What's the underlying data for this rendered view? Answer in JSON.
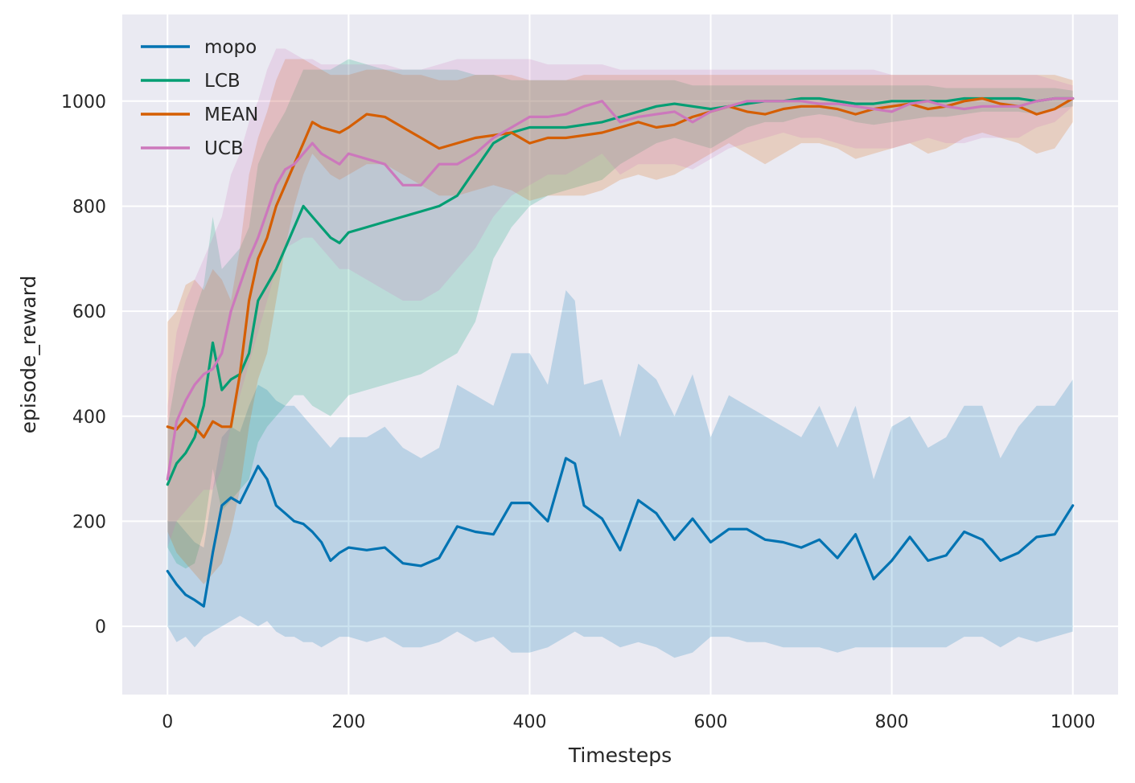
{
  "chart_data": {
    "type": "line",
    "xlabel": "Timesteps",
    "ylabel": "episode_reward",
    "xlim": [
      -50,
      1050
    ],
    "ylim": [
      -130,
      1165
    ],
    "xticks": [
      0,
      200,
      400,
      600,
      800,
      1000
    ],
    "yticks": [
      0,
      200,
      400,
      600,
      800,
      1000
    ],
    "grid": true,
    "legend": "top-left",
    "background": "#eaeaf2",
    "series": [
      {
        "name": "mopo",
        "color": "#0173b2",
        "x": [
          0,
          10,
          20,
          30,
          40,
          50,
          60,
          70,
          80,
          90,
          100,
          110,
          120,
          130,
          140,
          150,
          160,
          170,
          180,
          190,
          200,
          220,
          240,
          260,
          280,
          300,
          320,
          340,
          360,
          380,
          400,
          420,
          440,
          450,
          460,
          480,
          500,
          520,
          540,
          560,
          580,
          600,
          620,
          640,
          660,
          680,
          700,
          720,
          740,
          760,
          780,
          800,
          820,
          840,
          860,
          880,
          900,
          920,
          940,
          960,
          980,
          1000
        ],
        "mean": [
          105,
          80,
          60,
          50,
          38,
          140,
          230,
          245,
          235,
          270,
          305,
          280,
          230,
          215,
          200,
          195,
          180,
          160,
          125,
          140,
          150,
          145,
          150,
          120,
          115,
          130,
          190,
          180,
          175,
          235,
          235,
          200,
          320,
          310,
          230,
          205,
          145,
          240,
          215,
          165,
          205,
          160,
          185,
          185,
          165,
          160,
          150,
          165,
          130,
          175,
          90,
          125,
          170,
          125,
          135,
          180,
          165,
          125,
          140,
          170,
          175,
          230
        ],
        "lower": [
          0,
          -30,
          -20,
          -40,
          -20,
          -10,
          0,
          10,
          20,
          10,
          0,
          10,
          -10,
          -20,
          -20,
          -30,
          -30,
          -40,
          -30,
          -20,
          -20,
          -30,
          -20,
          -40,
          -40,
          -30,
          -10,
          -30,
          -20,
          -50,
          -50,
          -40,
          -20,
          -10,
          -20,
          -20,
          -40,
          -30,
          -40,
          -60,
          -50,
          -20,
          -20,
          -30,
          -30,
          -40,
          -40,
          -40,
          -50,
          -40,
          -40,
          -40,
          -40,
          -40,
          -40,
          -20,
          -20,
          -40,
          -20,
          -30,
          -20,
          -10
        ],
        "upper": [
          200,
          200,
          180,
          160,
          150,
          260,
          360,
          380,
          370,
          420,
          460,
          450,
          430,
          420,
          420,
          400,
          380,
          360,
          340,
          360,
          360,
          360,
          380,
          340,
          320,
          340,
          460,
          440,
          420,
          520,
          520,
          460,
          640,
          620,
          460,
          470,
          360,
          500,
          470,
          400,
          480,
          360,
          440,
          420,
          400,
          380,
          360,
          420,
          340,
          420,
          280,
          380,
          400,
          340,
          360,
          420,
          420,
          320,
          380,
          420,
          420,
          470
        ]
      },
      {
        "name": "LCB",
        "color": "#029e73",
        "x": [
          0,
          10,
          20,
          30,
          40,
          50,
          60,
          70,
          80,
          90,
          100,
          110,
          120,
          130,
          140,
          150,
          160,
          170,
          180,
          190,
          200,
          220,
          240,
          260,
          280,
          300,
          320,
          340,
          360,
          380,
          400,
          420,
          440,
          460,
          480,
          500,
          520,
          540,
          560,
          580,
          600,
          620,
          640,
          660,
          680,
          700,
          720,
          740,
          760,
          780,
          800,
          820,
          840,
          860,
          880,
          900,
          920,
          940,
          960,
          980,
          1000
        ],
        "mean": [
          270,
          310,
          330,
          360,
          420,
          540,
          450,
          470,
          480,
          520,
          620,
          650,
          680,
          720,
          760,
          800,
          780,
          760,
          740,
          730,
          750,
          760,
          770,
          780,
          790,
          800,
          820,
          870,
          920,
          940,
          950,
          950,
          950,
          955,
          960,
          970,
          980,
          990,
          995,
          990,
          985,
          990,
          995,
          1000,
          1000,
          1005,
          1005,
          1000,
          995,
          995,
          1000,
          1000,
          1000,
          1000,
          1005,
          1005,
          1005,
          1005,
          1000,
          1005,
          1005
        ],
        "lower": [
          150,
          120,
          110,
          120,
          180,
          300,
          220,
          240,
          260,
          280,
          350,
          380,
          400,
          420,
          440,
          440,
          420,
          410,
          400,
          420,
          440,
          450,
          460,
          470,
          480,
          500,
          520,
          580,
          700,
          760,
          800,
          820,
          830,
          840,
          850,
          880,
          900,
          920,
          930,
          920,
          910,
          930,
          950,
          960,
          960,
          970,
          975,
          970,
          960,
          955,
          960,
          965,
          970,
          970,
          975,
          980,
          980,
          980,
          975,
          985,
          990
        ],
        "upper": [
          380,
          480,
          540,
          600,
          650,
          780,
          680,
          700,
          720,
          760,
          880,
          920,
          950,
          980,
          1020,
          1060,
          1060,
          1060,
          1060,
          1070,
          1080,
          1070,
          1060,
          1060,
          1060,
          1060,
          1060,
          1050,
          1050,
          1040,
          1040,
          1040,
          1040,
          1040,
          1040,
          1040,
          1040,
          1040,
          1040,
          1030,
          1030,
          1030,
          1030,
          1030,
          1030,
          1030,
          1030,
          1030,
          1030,
          1030,
          1030,
          1030,
          1030,
          1025,
          1025,
          1025,
          1025,
          1025,
          1025,
          1025,
          1020
        ]
      },
      {
        "name": "MEAN",
        "color": "#d55e00",
        "x": [
          0,
          10,
          20,
          30,
          40,
          50,
          60,
          70,
          80,
          90,
          100,
          110,
          120,
          130,
          140,
          150,
          160,
          170,
          180,
          190,
          200,
          220,
          240,
          260,
          280,
          300,
          320,
          340,
          360,
          380,
          400,
          420,
          440,
          460,
          480,
          500,
          520,
          540,
          560,
          580,
          600,
          620,
          640,
          660,
          680,
          700,
          720,
          740,
          760,
          780,
          800,
          820,
          840,
          860,
          880,
          900,
          920,
          940,
          960,
          980,
          1000
        ],
        "mean": [
          380,
          375,
          395,
          380,
          360,
          390,
          380,
          380,
          480,
          620,
          700,
          740,
          800,
          840,
          880,
          920,
          960,
          950,
          945,
          940,
          950,
          975,
          970,
          950,
          930,
          910,
          920,
          930,
          935,
          940,
          920,
          930,
          930,
          935,
          940,
          950,
          960,
          950,
          955,
          970,
          980,
          990,
          980,
          975,
          985,
          990,
          990,
          985,
          975,
          985,
          990,
          995,
          985,
          990,
          1000,
          1005,
          995,
          990,
          975,
          985,
          1005
        ],
        "lower": [
          180,
          140,
          120,
          100,
          80,
          100,
          120,
          180,
          260,
          380,
          470,
          520,
          620,
          720,
          800,
          860,
          900,
          880,
          860,
          850,
          860,
          880,
          880,
          860,
          840,
          820,
          820,
          830,
          840,
          830,
          810,
          820,
          820,
          820,
          830,
          850,
          860,
          850,
          860,
          880,
          900,
          920,
          900,
          880,
          900,
          920,
          920,
          910,
          890,
          900,
          910,
          920,
          900,
          910,
          930,
          940,
          930,
          920,
          900,
          910,
          960
        ],
        "upper": [
          580,
          600,
          650,
          660,
          640,
          680,
          660,
          620,
          720,
          860,
          930,
          980,
          1040,
          1080,
          1080,
          1080,
          1070,
          1060,
          1050,
          1050,
          1050,
          1060,
          1060,
          1050,
          1050,
          1040,
          1040,
          1050,
          1050,
          1050,
          1040,
          1040,
          1040,
          1050,
          1050,
          1050,
          1050,
          1050,
          1050,
          1050,
          1050,
          1050,
          1050,
          1050,
          1050,
          1050,
          1050,
          1050,
          1050,
          1050,
          1050,
          1050,
          1050,
          1050,
          1050,
          1050,
          1050,
          1050,
          1050,
          1050,
          1040
        ]
      },
      {
        "name": "UCB",
        "color": "#cc78bc",
        "x": [
          0,
          10,
          20,
          30,
          40,
          50,
          60,
          70,
          80,
          90,
          100,
          110,
          120,
          130,
          140,
          150,
          160,
          170,
          180,
          190,
          200,
          220,
          240,
          260,
          280,
          300,
          320,
          340,
          360,
          380,
          400,
          420,
          440,
          460,
          480,
          500,
          520,
          540,
          560,
          580,
          600,
          620,
          640,
          660,
          680,
          700,
          720,
          740,
          760,
          780,
          800,
          820,
          840,
          860,
          880,
          900,
          920,
          940,
          960,
          980,
          1000
        ],
        "mean": [
          280,
          390,
          430,
          460,
          480,
          490,
          520,
          600,
          650,
          700,
          740,
          790,
          840,
          870,
          880,
          900,
          920,
          900,
          890,
          880,
          900,
          890,
          880,
          840,
          840,
          880,
          880,
          900,
          930,
          950,
          970,
          970,
          975,
          990,
          1000,
          960,
          970,
          975,
          980,
          960,
          980,
          990,
          1000,
          1000,
          1000,
          1000,
          995,
          995,
          990,
          985,
          980,
          995,
          1000,
          990,
          985,
          990,
          990,
          990,
          1000,
          1005,
          1005
        ],
        "lower": [
          150,
          200,
          220,
          240,
          260,
          260,
          300,
          380,
          440,
          500,
          560,
          620,
          680,
          720,
          730,
          740,
          740,
          720,
          700,
          680,
          680,
          660,
          640,
          620,
          620,
          640,
          680,
          720,
          780,
          820,
          840,
          860,
          860,
          880,
          900,
          860,
          880,
          880,
          880,
          870,
          890,
          910,
          920,
          930,
          940,
          930,
          930,
          920,
          910,
          910,
          910,
          920,
          930,
          920,
          920,
          930,
          930,
          930,
          950,
          960,
          990
        ],
        "upper": [
          420,
          560,
          620,
          660,
          700,
          740,
          780,
          860,
          900,
          960,
          1000,
          1060,
          1100,
          1100,
          1090,
          1080,
          1080,
          1070,
          1070,
          1070,
          1070,
          1070,
          1070,
          1060,
          1060,
          1070,
          1080,
          1080,
          1080,
          1080,
          1080,
          1070,
          1070,
          1070,
          1070,
          1060,
          1060,
          1060,
          1060,
          1060,
          1060,
          1060,
          1060,
          1060,
          1060,
          1060,
          1060,
          1060,
          1060,
          1060,
          1050,
          1050,
          1050,
          1050,
          1050,
          1050,
          1050,
          1050,
          1050,
          1040,
          1030
        ]
      }
    ]
  }
}
